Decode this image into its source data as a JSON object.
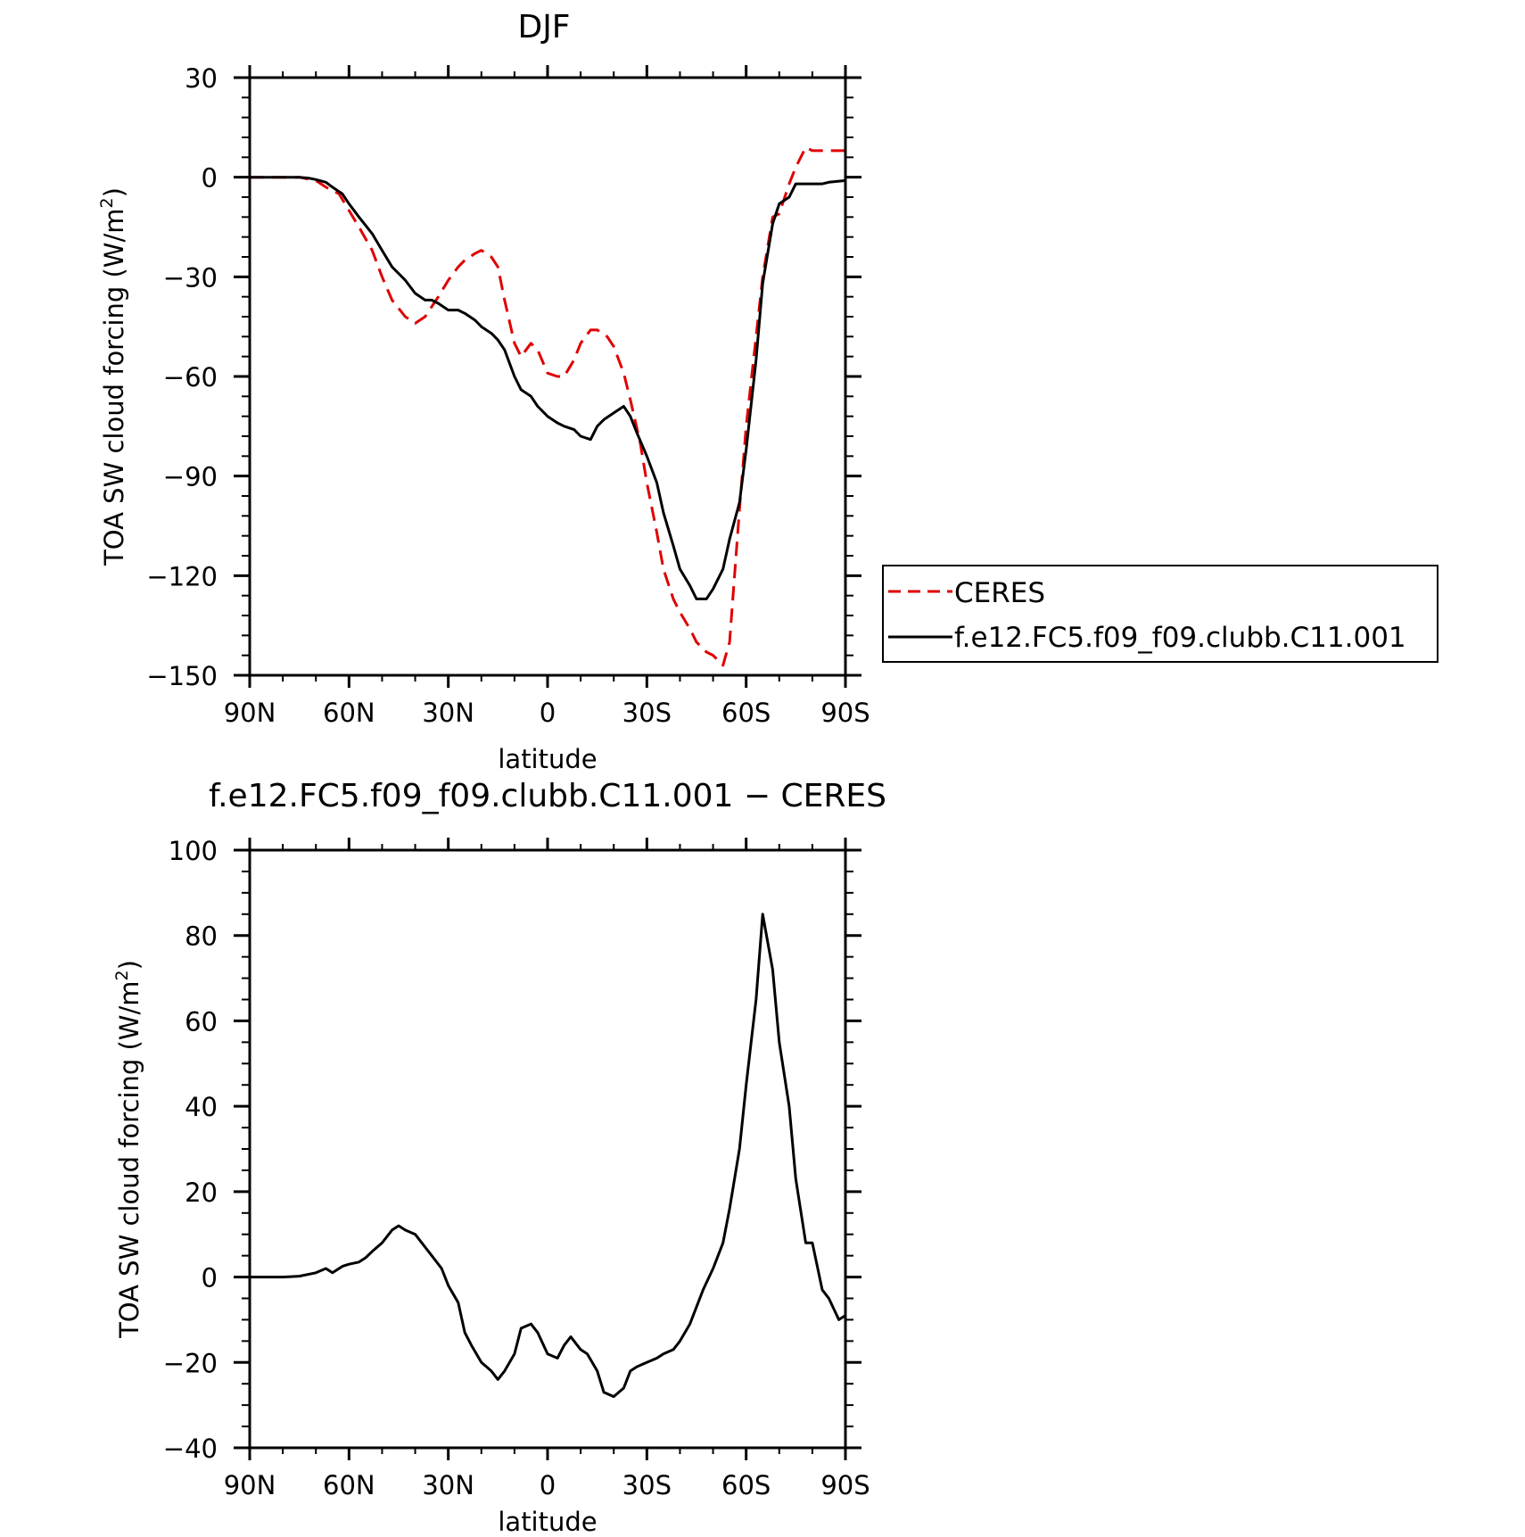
{
  "chart_data": [
    {
      "type": "line",
      "title": "DJF",
      "xlabel": "latitude",
      "ylabel": "TOA SW cloud forcing (W/m²)",
      "ylabel_main": "TOA SW cloud forcing (W/m",
      "ylabel_sup": "2",
      "ylabel_close": ")",
      "xlim": [
        90,
        -90
      ],
      "ylim": [
        -150,
        30
      ],
      "xticks": [
        90,
        60,
        30,
        0,
        -30,
        -60,
        -90
      ],
      "xtick_labels": [
        "90N",
        "60N",
        "30N",
        "0",
        "30S",
        "60S",
        "90S"
      ],
      "yticks": [
        30,
        0,
        -30,
        -60,
        -90,
        -120,
        -150
      ],
      "ytick_labels": [
        "30",
        "0",
        "−30",
        "−60",
        "−90",
        "−120",
        "−150"
      ],
      "legend_position": "right",
      "series": [
        {
          "name": "CERES",
          "color": "#e00000",
          "dash": "dashed",
          "x": [
            90,
            85,
            80,
            75,
            70,
            67,
            63,
            60,
            57,
            53,
            50,
            47,
            43,
            40,
            37,
            35,
            33,
            30,
            27,
            25,
            22,
            20,
            17,
            15,
            13,
            10,
            8,
            5,
            3,
            0,
            -3,
            -5,
            -8,
            -10,
            -13,
            -15,
            -18,
            -20,
            -23,
            -25,
            -28,
            -30,
            -33,
            -35,
            -38,
            -40,
            -43,
            -45,
            -48,
            -50,
            -53,
            -55,
            -58,
            -60,
            -63,
            -65,
            -68,
            -70,
            -73,
            -75,
            -78,
            -80,
            -83,
            -85,
            -88,
            -90
          ],
          "y": [
            0,
            0,
            0,
            0,
            -1,
            -3,
            -5,
            -10,
            -15,
            -22,
            -30,
            -37,
            -42,
            -44,
            -42,
            -39,
            -36,
            -31,
            -27,
            -25,
            -23,
            -22,
            -24,
            -27,
            -37,
            -50,
            -54,
            -50,
            -52,
            -59,
            -60,
            -60,
            -55,
            -50,
            -46,
            -46,
            -48,
            -51,
            -59,
            -67,
            -80,
            -92,
            -107,
            -118,
            -127,
            -131,
            -136,
            -140,
            -143,
            -144,
            -147,
            -140,
            -100,
            -75,
            -48,
            -30,
            -12,
            -11,
            -2,
            3,
            9,
            8,
            8,
            8,
            8,
            8
          ]
        },
        {
          "name": "f.e12.FC5.f09_f09.clubb.C11.001",
          "color": "#000000",
          "dash": "solid",
          "x": [
            90,
            85,
            80,
            75,
            72,
            70,
            67,
            65,
            62,
            60,
            57,
            53,
            50,
            47,
            43,
            40,
            37,
            35,
            33,
            30,
            27,
            25,
            22,
            20,
            17,
            15,
            13,
            10,
            8,
            5,
            3,
            0,
            -3,
            -5,
            -8,
            -10,
            -13,
            -15,
            -17,
            -20,
            -23,
            -25,
            -27,
            -30,
            -33,
            -35,
            -38,
            -40,
            -43,
            -45,
            -48,
            -50,
            -53,
            -55,
            -58,
            -60,
            -63,
            -65,
            -68,
            -70,
            -73,
            -75,
            -78,
            -80,
            -83,
            -85,
            -88,
            -90
          ],
          "y": [
            0,
            0,
            0,
            0,
            -0.3,
            -0.7,
            -1.5,
            -3,
            -5,
            -8,
            -12,
            -17,
            -22,
            -27,
            -31,
            -35,
            -37,
            -37,
            -38,
            -40,
            -40,
            -41,
            -43,
            -45,
            -47,
            -49,
            -52,
            -60,
            -64,
            -66,
            -69,
            -72,
            -74,
            -75,
            -76,
            -78,
            -79,
            -75,
            -73,
            -71,
            -69,
            -72,
            -77,
            -84,
            -92,
            -101,
            -111,
            -118,
            -123,
            -127,
            -127,
            -124,
            -118,
            -109,
            -98,
            -82,
            -55,
            -32,
            -14,
            -8,
            -6,
            -2,
            -2,
            -2,
            -2,
            -1.5,
            -1.2,
            -1
          ]
        }
      ]
    },
    {
      "type": "line",
      "title": "f.e12.FC5.f09_f09.clubb.C11.001 − CERES",
      "xlabel": "latitude",
      "ylabel": "TOA SW cloud forcing (W/m²)",
      "ylabel_main": "TOA SW cloud forcing (W/m",
      "ylabel_sup": "2",
      "ylabel_close": ")",
      "xlim": [
        90,
        -90
      ],
      "ylim": [
        -40,
        100
      ],
      "xticks": [
        90,
        60,
        30,
        0,
        -30,
        -60,
        -90
      ],
      "xtick_labels": [
        "90N",
        "60N",
        "30N",
        "0",
        "30S",
        "60S",
        "90S"
      ],
      "yticks": [
        100,
        80,
        60,
        40,
        20,
        0,
        -20,
        -40
      ],
      "ytick_labels": [
        "100",
        "80",
        "60",
        "40",
        "20",
        "0",
        "−20",
        "−40"
      ],
      "series": [
        {
          "color": "#000000",
          "dash": "solid",
          "x": [
            90,
            85,
            80,
            75,
            70,
            67,
            65,
            62,
            60,
            57,
            55,
            53,
            50,
            47,
            45,
            43,
            40,
            38,
            35,
            32,
            30,
            27,
            25,
            23,
            20,
            17,
            15,
            13,
            10,
            8,
            5,
            3,
            0,
            -3,
            -5,
            -7,
            -10,
            -12,
            -15,
            -17,
            -20,
            -23,
            -25,
            -27,
            -30,
            -33,
            -35,
            -38,
            -40,
            -43,
            -45,
            -47,
            -50,
            -53,
            -55,
            -58,
            -60,
            -63,
            -65,
            -68,
            -70,
            -73,
            -75,
            -78,
            -80,
            -83,
            -85,
            -88,
            -90
          ],
          "y": [
            0,
            0,
            0,
            0.2,
            1,
            2,
            1,
            2.5,
            3,
            3.5,
            4.5,
            6,
            8,
            11,
            12,
            11,
            10,
            8,
            5,
            2,
            -2,
            -6,
            -13,
            -16,
            -20,
            -22,
            -24,
            -22,
            -18,
            -12,
            -11,
            -13,
            -18,
            -19,
            -16,
            -14,
            -17,
            -18,
            -22,
            -27,
            -28,
            -26,
            -22,
            -21,
            -20,
            -19,
            -18,
            -17,
            -15,
            -11,
            -7,
            -3,
            2,
            8,
            16,
            30,
            45,
            65,
            85,
            72,
            55,
            40,
            23,
            8,
            8,
            -3,
            -5,
            -10,
            -9
          ]
        }
      ]
    }
  ]
}
